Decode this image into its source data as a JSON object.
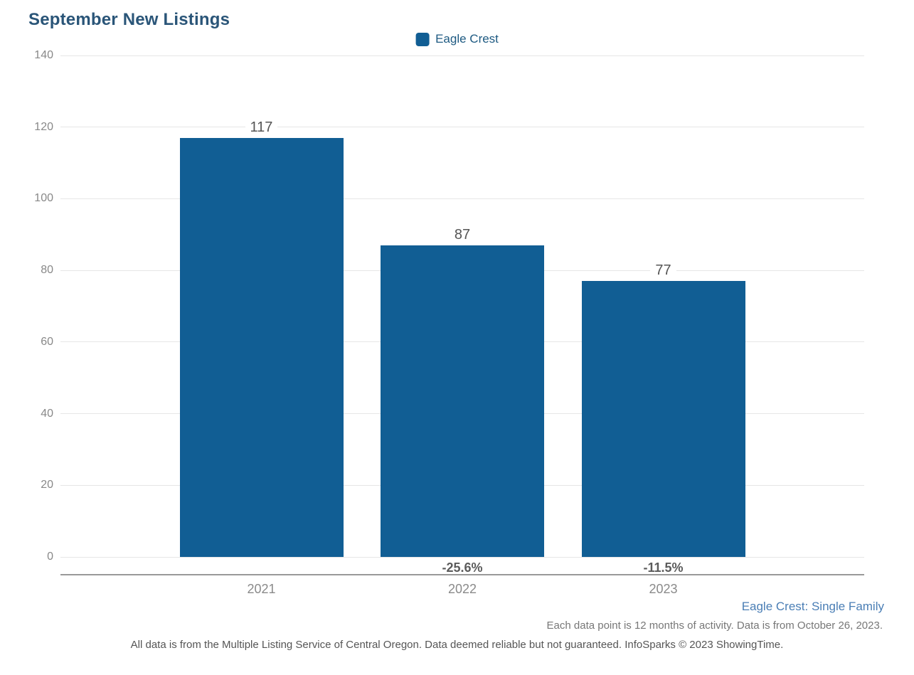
{
  "title": "September New Listings",
  "legend": {
    "label": "Eagle Crest"
  },
  "chart_data": {
    "type": "bar",
    "title": "September New Listings",
    "categories": [
      "2021",
      "2022",
      "2023"
    ],
    "series": [
      {
        "name": "Eagle Crest",
        "values": [
          117,
          87,
          77
        ]
      }
    ],
    "bar_value_labels": [
      "117",
      "87",
      "77"
    ],
    "pct_change_labels": [
      "",
      "-25.6%",
      "-11.5%"
    ],
    "xlabel": "",
    "ylabel": "",
    "ylim": [
      0,
      140
    ],
    "yticks": [
      0,
      20,
      40,
      60,
      80,
      100,
      120,
      140
    ],
    "grid": true,
    "legend_position": "top-center"
  },
  "colors": {
    "bar": "#115E94",
    "title": "#2A5578",
    "legend_text": "#1E5A82",
    "descriptor_text": "#4A7EB5",
    "gridline": "#e6e6e6",
    "axis_line": "#999999",
    "tick_text": "#888888",
    "value_text": "#555555",
    "pct_text": "#5b5b5b",
    "note_text": "#777777",
    "disclaimer_text": "#555555"
  },
  "footer": {
    "series_descriptor": "Eagle Crest: Single Family",
    "data_note": "Each data point is 12 months of activity. Data is from October 26, 2023.",
    "disclaimer": "All data is from the Multiple Listing Service of Central Oregon. Data deemed reliable but not guaranteed. InfoSparks © 2023 ShowingTime."
  }
}
